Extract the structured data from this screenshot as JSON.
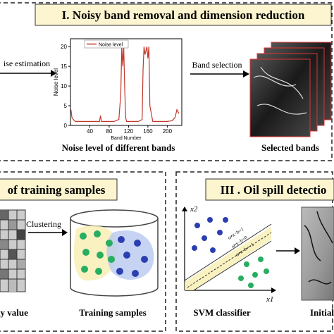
{
  "top_panel": {
    "title": "I. Noisy band removal and dimension reduction",
    "left_arrow_label": "ise estimation",
    "right_arrow_label": "Band selection",
    "chart_caption": "Noise level of different bands",
    "images_caption": "Selected bands"
  },
  "noise_chart": {
    "type": "line",
    "legend": "Noise level",
    "y_label": "Noise level",
    "x_label": "Band Number",
    "color": "#c0392b",
    "x": [
      1,
      3,
      6,
      10,
      20,
      40,
      60,
      62,
      64,
      80,
      90,
      100,
      104,
      106,
      108,
      110,
      112,
      114,
      116,
      130,
      140,
      148,
      150,
      152,
      154,
      156,
      158,
      160,
      162,
      164,
      170,
      180,
      200,
      210,
      216,
      220,
      224
    ],
    "values": [
      4,
      2,
      1.5,
      1,
      1,
      1,
      1,
      2.5,
      1,
      1,
      1,
      1.5,
      8,
      20,
      15,
      20,
      10,
      2,
      1,
      1,
      1,
      1.5,
      14,
      20,
      18,
      19,
      20,
      17,
      20,
      5,
      1,
      1,
      1,
      1.2,
      2,
      4,
      3
    ],
    "xlim": [
      0,
      230
    ],
    "ylim": [
      0,
      22
    ],
    "xticks": [
      40,
      80,
      120,
      160,
      200
    ],
    "yticks": [
      0,
      5,
      10,
      15,
      20
    ]
  },
  "bottom_left_panel": {
    "title": "of training samples",
    "arrow_label": "Clustering",
    "left_caption": "ty value",
    "right_caption": "Training samples"
  },
  "bottom_right_panel": {
    "title": "III . Oil spill detectio",
    "x_axis": "x1",
    "y_axis": "x2",
    "line_labels": [
      "ω•x−b=1",
      "ω•x−b=0",
      "ω•x−b=−1"
    ],
    "left_caption": "SVM classifier",
    "right_caption": "Initial detec"
  }
}
